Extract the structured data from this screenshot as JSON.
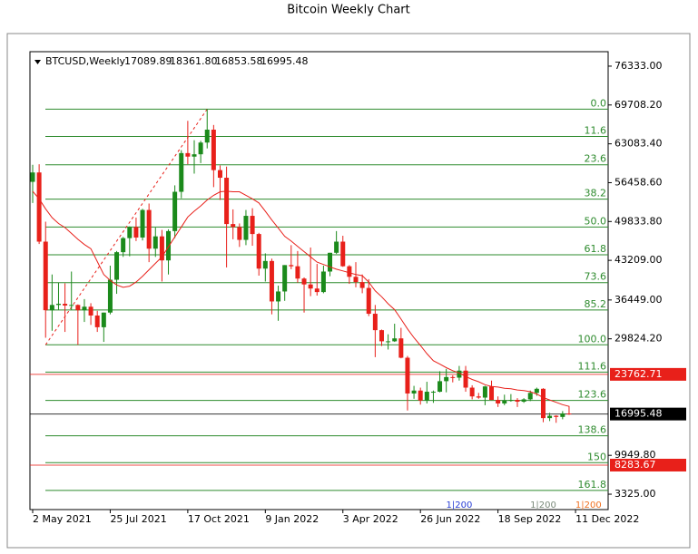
{
  "chart_data": {
    "type": "candlestick",
    "title": "Bitcoin Weekly Chart",
    "symbol": "BTCUSD,Weekly",
    "ohlc_labels": [
      "17089.89",
      "18361.80",
      "16853.58",
      "16995.48"
    ],
    "categories": [
      "2 May 2021",
      null,
      null,
      null,
      null,
      null,
      null,
      null,
      null,
      null,
      null,
      null,
      "25 Jul 2021",
      null,
      null,
      null,
      null,
      null,
      null,
      null,
      null,
      null,
      null,
      null,
      "17 Oct 2021",
      null,
      null,
      null,
      null,
      null,
      null,
      null,
      null,
      null,
      null,
      null,
      "9 Jan 2022",
      null,
      null,
      null,
      null,
      null,
      null,
      null,
      null,
      null,
      null,
      null,
      "3 Apr 2022",
      null,
      null,
      null,
      null,
      null,
      null,
      null,
      null,
      null,
      null,
      null,
      "26 Jun 2022",
      null,
      null,
      null,
      null,
      null,
      null,
      null,
      null,
      null,
      null,
      null,
      "18 Sep 2022",
      null,
      null,
      null,
      null,
      null,
      null,
      null,
      null,
      null,
      null,
      null,
      "11 Dec 2022"
    ],
    "open": [
      56600,
      58200,
      46400,
      34700,
      35600,
      35800,
      35500,
      35600,
      34700,
      35300,
      33800,
      31800,
      34300,
      39900,
      44600,
      47000,
      48900,
      47100,
      51800,
      45200,
      47300,
      43200,
      48200,
      54900,
      61500,
      60900,
      61300,
      63300,
      65500,
      58600,
      57300,
      49400,
      48900,
      46700,
      50800,
      47700,
      41800,
      43100,
      36200,
      37900,
      42400,
      42200,
      40100,
      39100,
      38400,
      37800,
      41300,
      44500,
      46400,
      42200,
      40400,
      39500,
      38500,
      34100,
      31300,
      29400,
      29400,
      29900,
      26600,
      20500,
      21000,
      19300,
      20800,
      20800,
      22600,
      23300,
      23200,
      24400,
      21500,
      20000,
      19800,
      21700,
      19400,
      18800,
      19300,
      19400,
      19100,
      19500,
      20600,
      21300,
      16300,
      16700,
      16500,
      17089.89,
      null
    ],
    "high": [
      59500,
      59600,
      49800,
      40800,
      39400,
      39300,
      41300,
      35700,
      36600,
      35900,
      34600,
      34300,
      42300,
      44800,
      47200,
      49000,
      50500,
      52000,
      52900,
      48800,
      48400,
      48500,
      56000,
      62000,
      67000,
      63700,
      63600,
      69000,
      66300,
      59400,
      59200,
      51900,
      49500,
      51800,
      52100,
      47900,
      44400,
      43500,
      38900,
      42400,
      45800,
      44800,
      40300,
      45400,
      42600,
      42300,
      44500,
      48200,
      47400,
      42400,
      42900,
      40800,
      40000,
      35600,
      31400,
      30600,
      32400,
      31700,
      26900,
      21800,
      21500,
      22500,
      21000,
      24300,
      24700,
      23600,
      25200,
      25200,
      21900,
      20600,
      21800,
      22700,
      20000,
      20300,
      20400,
      19700,
      19700,
      21000,
      21500,
      21400,
      17200,
      16800,
      17500,
      18361.8,
      null
    ],
    "low": [
      53000,
      46000,
      30000,
      31200,
      34800,
      31000,
      34800,
      28800,
      32700,
      32200,
      31000,
      29300,
      34000,
      37500,
      43800,
      43900,
      46500,
      46600,
      42900,
      43800,
      39600,
      40800,
      47000,
      53800,
      59600,
      58000,
      59800,
      62300,
      55700,
      53500,
      42000,
      46800,
      45500,
      45800,
      45700,
      40600,
      39600,
      34000,
      32900,
      36300,
      41700,
      39400,
      34300,
      37100,
      37200,
      37600,
      40500,
      44300,
      42100,
      39200,
      38600,
      37600,
      33700,
      26700,
      28600,
      28000,
      29300,
      26500,
      17600,
      19600,
      18600,
      18800,
      18900,
      20700,
      20700,
      22400,
      22700,
      20800,
      19500,
      19600,
      18500,
      19400,
      18200,
      18500,
      19100,
      18200,
      18900,
      19200,
      20100,
      15600,
      15800,
      15500,
      16100,
      16853.58,
      null
    ],
    "close": [
      58200,
      46400,
      34700,
      35600,
      35800,
      35500,
      35600,
      34700,
      35300,
      33800,
      31800,
      34300,
      39900,
      44600,
      47000,
      48900,
      47100,
      51800,
      45200,
      47300,
      43200,
      48200,
      54900,
      61500,
      60900,
      61300,
      63300,
      65500,
      58600,
      57300,
      49400,
      48900,
      46700,
      50800,
      47700,
      41800,
      43100,
      36200,
      37900,
      42400,
      42200,
      40100,
      39100,
      38400,
      37800,
      41300,
      44500,
      46400,
      42200,
      40400,
      39500,
      38500,
      34100,
      31300,
      29400,
      29400,
      29900,
      26600,
      20500,
      21000,
      19300,
      20800,
      20800,
      22600,
      23300,
      23200,
      24400,
      21500,
      20000,
      19800,
      21700,
      19400,
      18800,
      19300,
      19400,
      19100,
      19500,
      20600,
      21300,
      16300,
      16700,
      16500,
      17100,
      16995.48,
      null
    ],
    "up_color": "#1b8a1b",
    "down_color": "#e8201a",
    "moving_average": {
      "color": "#e8201a",
      "values": [
        55000,
        53700,
        52000,
        50500,
        49500,
        48800,
        47800,
        46800,
        45900,
        45200,
        43000,
        40800,
        39800,
        39000,
        38600,
        38800,
        39500,
        40500,
        41600,
        42700,
        43800,
        45500,
        47200,
        48900,
        50600,
        51600,
        52500,
        53500,
        54300,
        54900,
        55000,
        54900,
        54900,
        54300,
        53700,
        53000,
        51600,
        50100,
        48700,
        47300,
        46500,
        45600,
        44700,
        43800,
        42900,
        42500,
        42100,
        41700,
        41400,
        41100,
        40800,
        40600,
        39500,
        38000,
        37000,
        35800,
        34800,
        33200,
        31500,
        30000,
        28700,
        27300,
        26100,
        25500,
        24900,
        24400,
        24000,
        23400,
        22900,
        22500,
        22000,
        21700,
        21600,
        21400,
        21300,
        21100,
        21000,
        20800,
        20400,
        19800,
        19400,
        19000,
        18600,
        18300,
        null
      ]
    },
    "fibonacci": {
      "color": "#2e8b2e",
      "levels": [
        "0.0",
        "11.6",
        "23.6",
        "38.2",
        "50.0",
        "61.8",
        "73.6",
        "85.2",
        "100.0",
        "111.6",
        "123.6",
        "138.6",
        "150",
        "161.8"
      ],
      "prices": [
        69000,
        64340,
        59510,
        53640,
        48900,
        44160,
        39410,
        34750,
        28800,
        24140,
        19320,
        13290,
        8700,
        3960
      ]
    },
    "trendline": {
      "color": "#e8201a",
      "x": [
        2,
        27
      ],
      "y": [
        28800,
        69000
      ]
    },
    "price_lines": [
      {
        "price": 23762.71,
        "color": "#e8201a"
      },
      {
        "price": 16995.48,
        "color": "#000000"
      },
      {
        "price": 8283.67,
        "color": "#e8201a"
      }
    ],
    "annotations": [
      {
        "text": "1|200",
        "color": "#2a3fd6",
        "x": 66
      },
      {
        "text": "1|200",
        "color": "#7a8a7a",
        "x": 79
      },
      {
        "text": "1|200",
        "color": "#f07020",
        "x": 86
      }
    ],
    "ylim": [
      700,
      78800
    ],
    "yticks": [
      {
        "value": 76333,
        "label": "76333.00"
      },
      {
        "value": 69708.2,
        "label": "69708.20"
      },
      {
        "value": 63083.4,
        "label": "63083.40"
      },
      {
        "value": 56458.6,
        "label": "56458.60"
      },
      {
        "value": 49833.8,
        "label": "49833.80"
      },
      {
        "value": 43209,
        "label": "43209.00"
      },
      {
        "value": 36449,
        "label": "36449.00"
      },
      {
        "value": 29824.2,
        "label": "29824.20"
      },
      {
        "value": 9949.8,
        "label": "9949.80"
      },
      {
        "value": 3325,
        "label": "3325.00"
      }
    ]
  }
}
